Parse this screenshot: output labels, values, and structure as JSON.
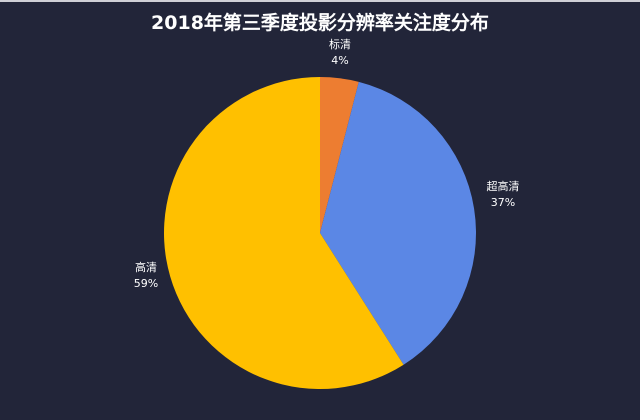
{
  "chart_data": {
    "type": "pie",
    "title": "2018年第三季度投影分辨率关注度分布",
    "start": "top",
    "direction": "clockwise",
    "slices": [
      {
        "label": "标清",
        "value": 4,
        "value_label": "4%",
        "color": "#ed7d31"
      },
      {
        "label": "超高清",
        "value": 37,
        "value_label": "37%",
        "color": "#5b87e5"
      },
      {
        "label": "高清",
        "value": 59,
        "value_label": "59%",
        "color": "#ffc000"
      }
    ],
    "background": "#222539"
  }
}
